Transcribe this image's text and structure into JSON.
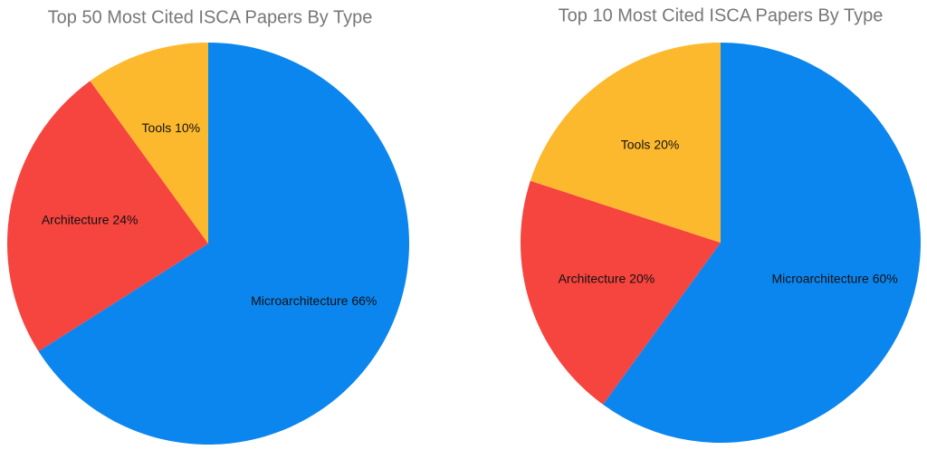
{
  "chart_data": [
    {
      "type": "pie",
      "title": "Top 50 Most Cited ISCA Papers By Type",
      "values": [
        66,
        24,
        10
      ],
      "value_labels": [
        "Microarchitecture 66%",
        "Architecture 24%",
        "Tools 10%"
      ],
      "colors": [
        "#0b86ef",
        "#f6443e",
        "#fdb92e"
      ]
    },
    {
      "type": "pie",
      "title": "Top 10 Most Cited ISCA Papers By Type",
      "values": [
        60,
        20,
        20
      ],
      "value_labels": [
        "Microarchitecture 60%",
        "Architecture 20%",
        "Tools 20%"
      ],
      "colors": [
        "#0b86ef",
        "#f6443e",
        "#fdb92e"
      ]
    }
  ]
}
